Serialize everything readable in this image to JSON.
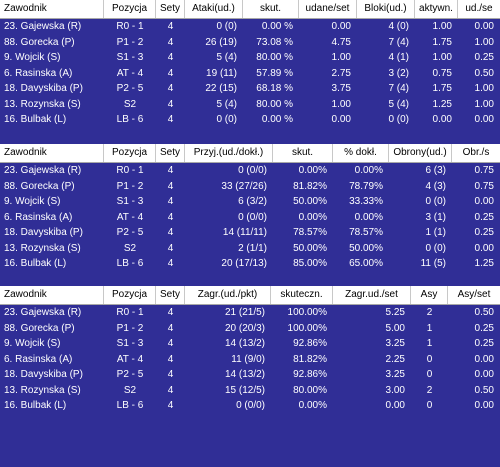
{
  "tables": [
    {
      "headers": [
        "Zawodnik",
        "Pozycja",
        "Sety",
        "Ataki(ud.)",
        "skut.",
        "udane/set",
        "Bloki(ud.)",
        "aktywn.",
        "ud./se"
      ],
      "rows": [
        [
          "23. Gajewska (R)",
          "R0 - 1",
          "4",
          "0 (0)",
          "0.00 %",
          "0.00",
          "4 (0)",
          "1.00",
          "0.00"
        ],
        [
          "88. Gorecka (P)",
          "P1 - 2",
          "4",
          "26 (19)",
          "73.08 %",
          "4.75",
          "7 (4)",
          "1.75",
          "1.00"
        ],
        [
          "9. Wojcik (S)",
          "S1 - 3",
          "4",
          "5 (4)",
          "80.00 %",
          "1.00",
          "4 (1)",
          "1.00",
          "0.25"
        ],
        [
          "6. Rasinska (A)",
          "AT - 4",
          "4",
          "19 (11)",
          "57.89 %",
          "2.75",
          "3 (2)",
          "0.75",
          "0.50"
        ],
        [
          "18. Davyskiba (P)",
          "P2 - 5",
          "4",
          "22 (15)",
          "68.18 %",
          "3.75",
          "7 (4)",
          "1.75",
          "1.00"
        ],
        [
          "13. Rozynska (S)",
          "S2",
          "4",
          "5 (4)",
          "80.00 %",
          "1.00",
          "5 (4)",
          "1.25",
          "1.00"
        ],
        [
          "16. Bulbak (L)",
          "LB - 6",
          "4",
          "0 (0)",
          "0.00 %",
          "0.00",
          "0 (0)",
          "0.00",
          "0.00"
        ]
      ]
    },
    {
      "headers": [
        "Zawodnik",
        "Pozycja",
        "Sety",
        "Przyj.(ud./dokł.)",
        "skut.",
        "% dokł.",
        "Obrony(ud.)",
        "Obr./s"
      ],
      "rows": [
        [
          "23. Gajewska (R)",
          "R0 - 1",
          "4",
          "0 (0/0)",
          "0.00%",
          "0.00%",
          "6 (3)",
          "0.75"
        ],
        [
          "88. Gorecka (P)",
          "P1 - 2",
          "4",
          "33 (27/26)",
          "81.82%",
          "78.79%",
          "4 (3)",
          "0.75"
        ],
        [
          "9. Wojcik (S)",
          "S1 - 3",
          "4",
          "6 (3/2)",
          "50.00%",
          "33.33%",
          "0 (0)",
          "0.00"
        ],
        [
          "6. Rasinska (A)",
          "AT - 4",
          "4",
          "0 (0/0)",
          "0.00%",
          "0.00%",
          "3 (1)",
          "0.25"
        ],
        [
          "18. Davyskiba (P)",
          "P2 - 5",
          "4",
          "14 (11/11)",
          "78.57%",
          "78.57%",
          "1 (1)",
          "0.25"
        ],
        [
          "13. Rozynska (S)",
          "S2",
          "4",
          "2 (1/1)",
          "50.00%",
          "50.00%",
          "0 (0)",
          "0.00"
        ],
        [
          "16. Bulbak (L)",
          "LB - 6",
          "4",
          "20 (17/13)",
          "85.00%",
          "65.00%",
          "11 (5)",
          "1.25"
        ]
      ]
    },
    {
      "headers": [
        "Zawodnik",
        "Pozycja",
        "Sety",
        "Zagr.(ud./pkt)",
        "skuteczn.",
        "Zagr.ud./set",
        "Asy",
        "Asy/set"
      ],
      "rows": [
        [
          "23. Gajewska (R)",
          "R0 - 1",
          "4",
          "21 (21/5)",
          "100.00%",
          "5.25",
          "2",
          "0.50"
        ],
        [
          "88. Gorecka (P)",
          "P1 - 2",
          "4",
          "20 (20/3)",
          "100.00%",
          "5.00",
          "1",
          "0.25"
        ],
        [
          "9. Wojcik (S)",
          "S1 - 3",
          "4",
          "14 (13/2)",
          "92.86%",
          "3.25",
          "1",
          "0.25"
        ],
        [
          "6. Rasinska (A)",
          "AT - 4",
          "4",
          "11 (9/0)",
          "81.82%",
          "2.25",
          "0",
          "0.00"
        ],
        [
          "18. Davyskiba (P)",
          "P2 - 5",
          "4",
          "14 (13/2)",
          "92.86%",
          "3.25",
          "0",
          "0.00"
        ],
        [
          "13. Rozynska (S)",
          "S2",
          "4",
          "15 (12/5)",
          "80.00%",
          "3.00",
          "2",
          "0.50"
        ],
        [
          "16. Bulbak (L)",
          "LB - 6",
          "4",
          "0 (0/0)",
          "0.00%",
          "0.00",
          "0",
          "0.00"
        ]
      ]
    }
  ]
}
